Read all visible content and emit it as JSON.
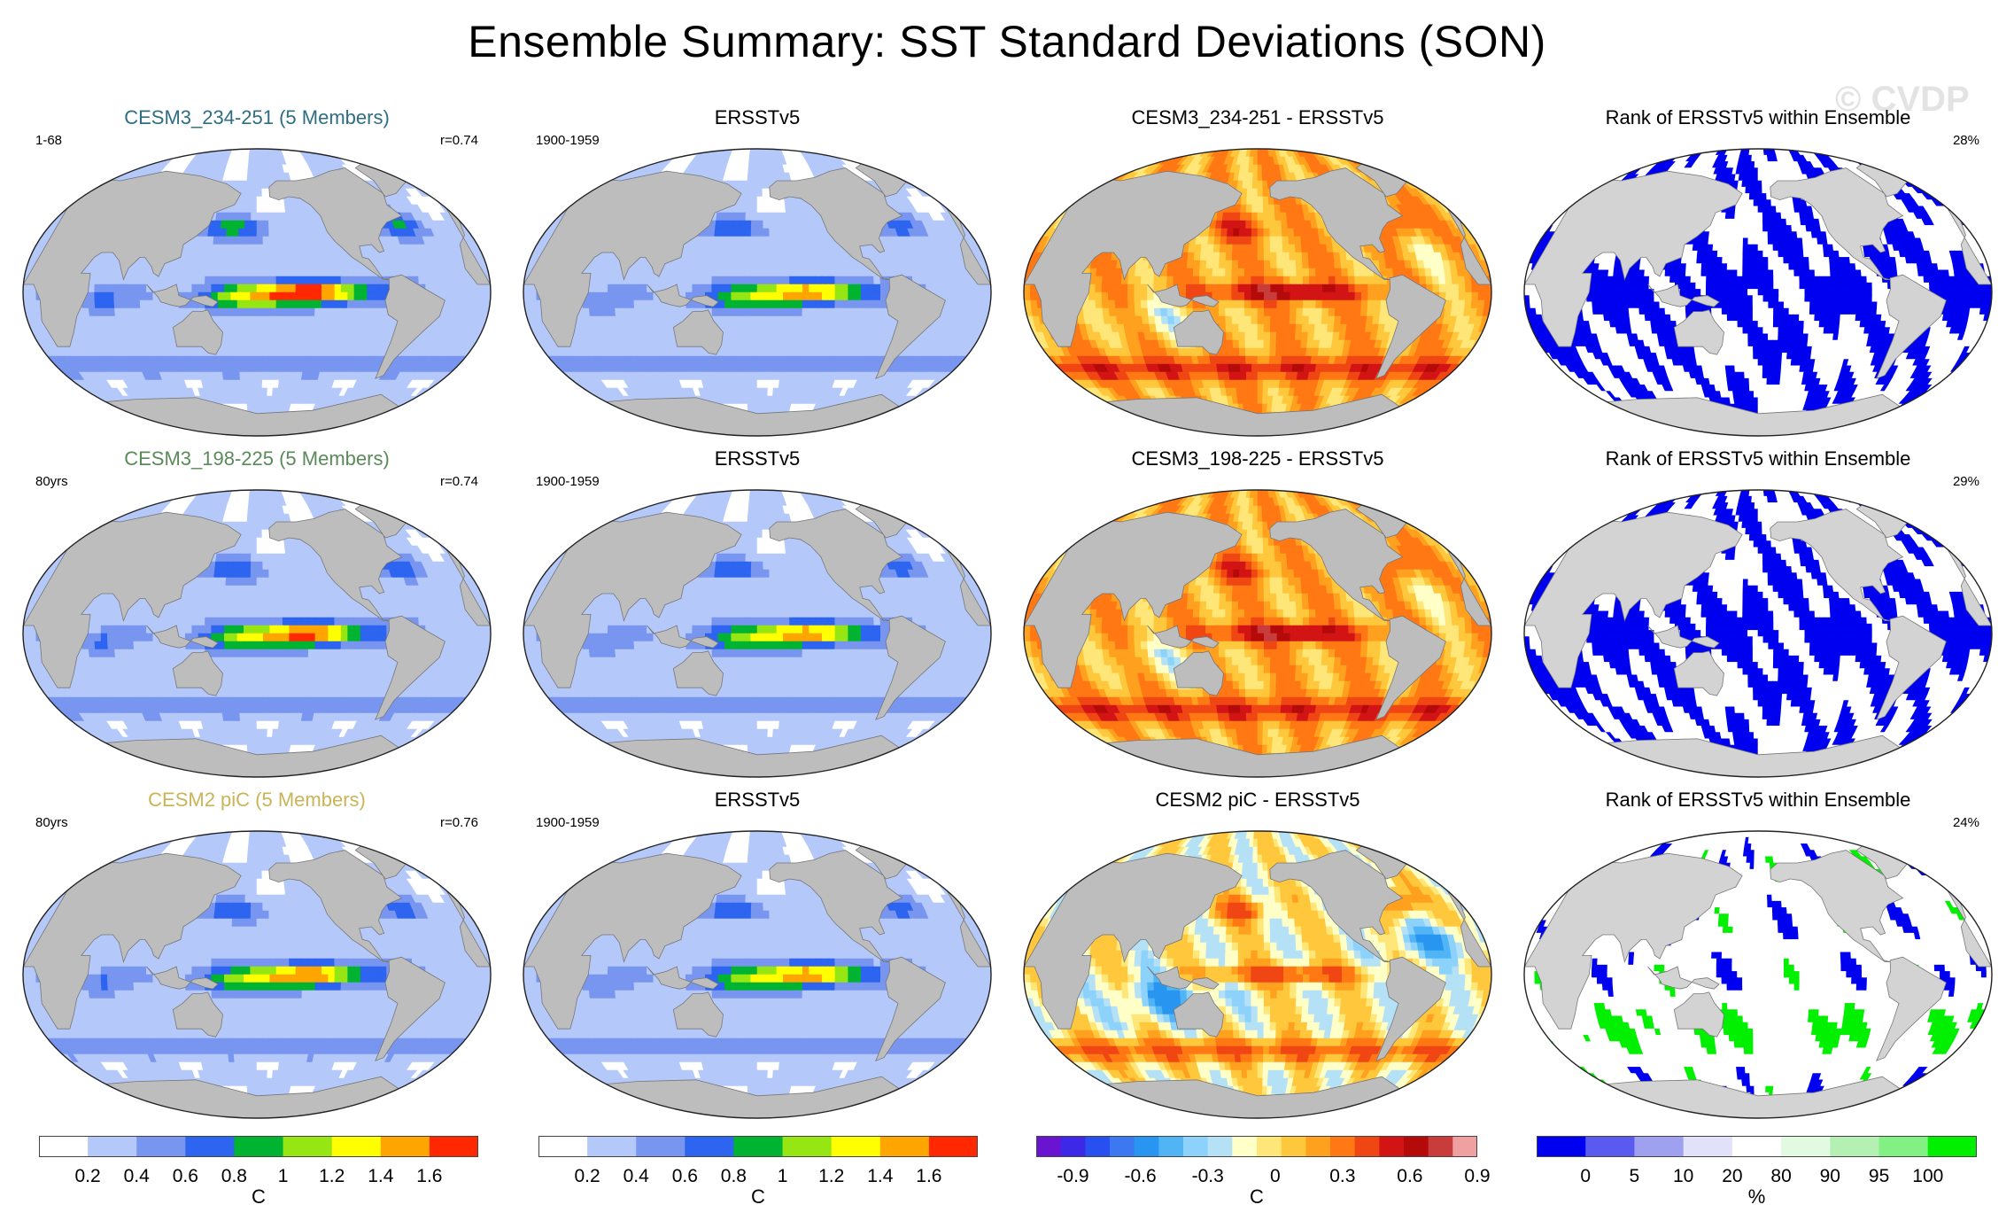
{
  "title": "Ensemble Summary: SST Standard Deviations (SON)",
  "watermark": "© CVDP",
  "rows": [
    {
      "model": {
        "title": "CESM3_234-251 (5 Members)",
        "title_color": "#2e6e84",
        "left": "1-68",
        "right": "r=0.74",
        "pattern": "model",
        "amp": 0.95
      },
      "obs": {
        "title": "ERSSTv5",
        "left": "1900-1959",
        "pattern": "obs",
        "amp": 0.75
      },
      "diff": {
        "title": "CESM3_234-251 - ERSSTv5",
        "pattern": "diff_pos"
      },
      "rank": {
        "title": "Rank of ERSSTv5 within Ensemble",
        "right": "28%",
        "pattern": "rank_low"
      }
    },
    {
      "model": {
        "title": "CESM3_198-225 (5 Members)",
        "title_color": "#5a8a5a",
        "left": "80yrs",
        "right": "r=0.74",
        "pattern": "model",
        "amp": 0.85
      },
      "obs": {
        "title": "ERSSTv5",
        "left": "1900-1959",
        "pattern": "obs",
        "amp": 0.75
      },
      "diff": {
        "title": "CESM3_198-225 - ERSSTv5",
        "pattern": "diff_pos"
      },
      "rank": {
        "title": "Rank of ERSSTv5 within Ensemble",
        "right": "29%",
        "pattern": "rank_low"
      }
    },
    {
      "model": {
        "title": "CESM2 piC (5 Members)",
        "title_color": "#c9b458",
        "left": "80yrs",
        "right": "r=0.76",
        "pattern": "model",
        "amp": 0.8
      },
      "obs": {
        "title": "ERSSTv5",
        "left": "1900-1959",
        "pattern": "obs",
        "amp": 0.75
      },
      "diff": {
        "title": "CESM2 piC - ERSSTv5",
        "pattern": "diff_mixed"
      },
      "rank": {
        "title": "Rank of ERSSTv5 within Ensemble",
        "right": "24%",
        "pattern": "rank_mixed"
      }
    }
  ],
  "colorbars": [
    {
      "name": "std",
      "label": "C",
      "colors": [
        "#ffffff",
        "#b4c8fa",
        "#7896f0",
        "#2d64f0",
        "#00b432",
        "#96e614",
        "#ffff00",
        "#ffa500",
        "#ff2800"
      ],
      "ticks": [
        "0.2",
        "0.4",
        "0.6",
        "0.8",
        "1",
        "1.2",
        "1.4",
        "1.6"
      ]
    },
    {
      "name": "std",
      "label": "C",
      "colors": [
        "#ffffff",
        "#b4c8fa",
        "#7896f0",
        "#2d64f0",
        "#00b432",
        "#96e614",
        "#ffff00",
        "#ffa500",
        "#ff2800"
      ],
      "ticks": [
        "0.2",
        "0.4",
        "0.6",
        "0.8",
        "1",
        "1.2",
        "1.4",
        "1.6"
      ]
    },
    {
      "name": "diff",
      "label": "C",
      "colors": [
        "#6a14d2",
        "#3c28e6",
        "#2850f0",
        "#3c78f0",
        "#2896f0",
        "#50b4f5",
        "#8cd2fa",
        "#b4e1f5",
        "#ffffc8",
        "#ffe678",
        "#ffc83c",
        "#ffa01e",
        "#ff7814",
        "#f04614",
        "#d21414",
        "#b40a0a",
        "#c83c3c",
        "#f0a0a0"
      ],
      "ticks": [
        "-0.9",
        "-0.6",
        "-0.3",
        "0",
        "0.3",
        "0.6",
        "0.9"
      ]
    },
    {
      "name": "rank",
      "label": "%",
      "colors": [
        "#0000f0",
        "#5a5af0",
        "#a0a0f0",
        "#e1e1fa",
        "#ffffff",
        "#e1fae1",
        "#b4f0b4",
        "#82f082",
        "#00f000"
      ],
      "ticks": [
        "0",
        "5",
        "10",
        "20",
        "80",
        "90",
        "95",
        "100"
      ]
    }
  ]
}
